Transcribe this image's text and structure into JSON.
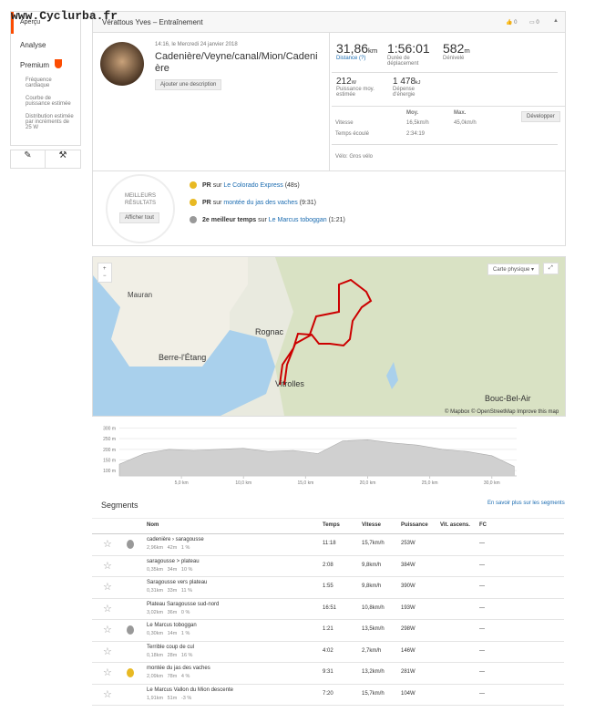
{
  "watermark": "www.Cyclurba.fr",
  "sidebar": {
    "items": [
      "Aperçu",
      "Analyse",
      "Premium"
    ],
    "premium_items": [
      "Fréquence cardiaque",
      "Courbe de puissance estimée",
      "Distribution estimée par incréments de 25 W"
    ]
  },
  "header": {
    "title": "Vérattous Yves – Entraînement",
    "kudos": "0",
    "comments": "0"
  },
  "activity": {
    "date": "14:16, le Mercredi 24 janvier 2018",
    "title": "Cadenière/Veyne/canal/Mion/Cadenière",
    "add_description": "Ajouter une description"
  },
  "stats": {
    "main": [
      {
        "value": "31,86",
        "unit": "km",
        "label": "Distance (?)"
      },
      {
        "value": "1:56:01",
        "unit": "",
        "label": "Durée de déplacement"
      },
      {
        "value": "582",
        "unit": "m",
        "label": "Dénivelé"
      }
    ],
    "secondary": [
      {
        "value": "212",
        "unit": "W",
        "label": "Puissance moy. estimée"
      },
      {
        "value": "1 478",
        "unit": "kJ",
        "label": "Dépense d'énergie"
      }
    ],
    "table": {
      "headers": [
        "Moy.",
        "Max."
      ],
      "expand": "Développer",
      "rows": [
        [
          "Vitesse",
          "16,5km/h",
          "45,0km/h"
        ],
        [
          "Temps écoulé",
          "2:34:19"
        ]
      ]
    },
    "bike": "Vélo: Gros vélo"
  },
  "achievements": {
    "badge": "MEILLEURS RÉSULTATS",
    "show_all": "Afficher tout",
    "items": [
      {
        "prefix": "PR",
        "mid": "sur",
        "link": "Le Colorado Express",
        "suffix": "(48s)"
      },
      {
        "prefix": "PR",
        "mid": "sur",
        "link": "montée du jas des vaches",
        "suffix": "(9:31)"
      },
      {
        "prefix": "2e meilleur temps",
        "mid": "sur",
        "link": "Le Marcus toboggan",
        "suffix": "(1:21)"
      }
    ]
  },
  "map": {
    "layer": "Carte physique",
    "places": [
      "Mauran",
      "Rognac",
      "Berre-l'Étang",
      "Vitrolles",
      "Bouc-Bel-Air"
    ],
    "attribution": "© Mapbox © OpenStreetMap Improve this map"
  },
  "chart_data": {
    "type": "area",
    "x": [
      0,
      2,
      4,
      6,
      8,
      10,
      12,
      14,
      16,
      18,
      20,
      22,
      24,
      26,
      28,
      30,
      31.8
    ],
    "values": [
      130,
      180,
      200,
      195,
      200,
      205,
      190,
      195,
      180,
      240,
      245,
      230,
      220,
      200,
      190,
      170,
      120
    ],
    "color": "#d0d0d0",
    "xlim": [
      0,
      32
    ],
    "ylim": [
      75,
      315
    ],
    "xticks": [
      {
        "value": 5,
        "label": "5,0 km"
      },
      {
        "value": 10,
        "label": "10,0 km"
      },
      {
        "value": 15,
        "label": "15,0 km"
      },
      {
        "value": 20,
        "label": "20,0 km"
      },
      {
        "value": 25,
        "label": "25,0 km"
      },
      {
        "value": 30,
        "label": "30,0 km"
      }
    ],
    "yticks": [
      {
        "value": 100,
        "label": "100 m"
      },
      {
        "value": 150,
        "label": "150 m"
      },
      {
        "value": 200,
        "label": "200 m"
      },
      {
        "value": 250,
        "label": "250 m"
      },
      {
        "value": 300,
        "label": "300 m"
      }
    ]
  },
  "segments": {
    "title": "Segments",
    "more": "En savoir plus sur les segments",
    "headers": [
      "Nom",
      "Temps",
      "Vitesse",
      "Puissance",
      "Vit. ascens.",
      "FC"
    ],
    "rows": [
      [
        "cadenière › saragousse",
        "2,96km   42m   1 %",
        "11:18",
        "15,7km/h",
        "253W",
        "—"
      ],
      [
        "saragousse > plateau",
        "0,35km   34m   10 %",
        "2:08",
        "9,8km/h",
        "384W",
        "—"
      ],
      [
        "Saragousse vers plateau",
        "0,31km   33m   11 %",
        "1:55",
        "9,8km/h",
        "390W",
        "—"
      ],
      [
        "Plateau Saragousse sud-nord",
        "3,02km   36m   0 %",
        "16:51",
        "10,8km/h",
        "193W",
        "—"
      ],
      [
        "Le Marcus toboggan",
        "0,30km   14m   1 %",
        "1:21",
        "13,5km/h",
        "298W",
        "—"
      ],
      [
        "Terrible coup de cul",
        "0,18km   28m   16 %",
        "4:02",
        "2,7km/h",
        "146W",
        "—"
      ],
      [
        "montée du jas des vaches",
        "2,09km   78m   4 %",
        "9:31",
        "13,2km/h",
        "281W",
        "—"
      ],
      [
        "Le Marcus Vallon du Mion descente",
        "1,91km   51m   -3 %",
        "7:20",
        "15,7km/h",
        "104W",
        "—"
      ]
    ]
  }
}
